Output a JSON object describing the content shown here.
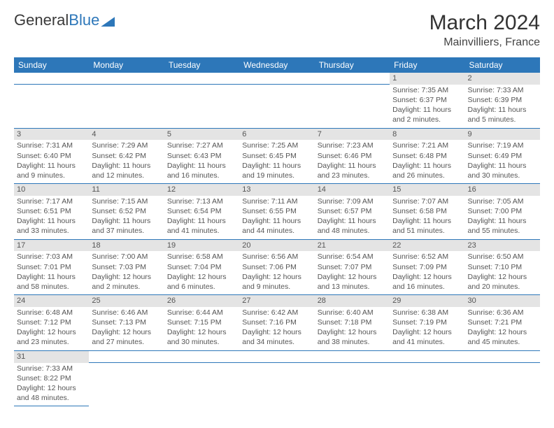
{
  "logo": {
    "word1": "General",
    "word2": "Blue"
  },
  "title": "March 2024",
  "location": "Mainvilliers, France",
  "colors": {
    "header_bg": "#2d77b9",
    "daynum_bg": "#e4e4e4",
    "row_divider": "#2d77b9",
    "text": "#555"
  },
  "weekdays": [
    "Sunday",
    "Monday",
    "Tuesday",
    "Wednesday",
    "Thursday",
    "Friday",
    "Saturday"
  ],
  "weeks": [
    {
      "nums": [
        "",
        "",
        "",
        "",
        "",
        "1",
        "2"
      ],
      "cells": [
        "",
        "",
        "",
        "",
        "",
        "Sunrise: 7:35 AM\nSunset: 6:37 PM\nDaylight: 11 hours and 2 minutes.",
        "Sunrise: 7:33 AM\nSunset: 6:39 PM\nDaylight: 11 hours and 5 minutes."
      ]
    },
    {
      "nums": [
        "3",
        "4",
        "5",
        "6",
        "7",
        "8",
        "9"
      ],
      "cells": [
        "Sunrise: 7:31 AM\nSunset: 6:40 PM\nDaylight: 11 hours and 9 minutes.",
        "Sunrise: 7:29 AM\nSunset: 6:42 PM\nDaylight: 11 hours and 12 minutes.",
        "Sunrise: 7:27 AM\nSunset: 6:43 PM\nDaylight: 11 hours and 16 minutes.",
        "Sunrise: 7:25 AM\nSunset: 6:45 PM\nDaylight: 11 hours and 19 minutes.",
        "Sunrise: 7:23 AM\nSunset: 6:46 PM\nDaylight: 11 hours and 23 minutes.",
        "Sunrise: 7:21 AM\nSunset: 6:48 PM\nDaylight: 11 hours and 26 minutes.",
        "Sunrise: 7:19 AM\nSunset: 6:49 PM\nDaylight: 11 hours and 30 minutes."
      ]
    },
    {
      "nums": [
        "10",
        "11",
        "12",
        "13",
        "14",
        "15",
        "16"
      ],
      "cells": [
        "Sunrise: 7:17 AM\nSunset: 6:51 PM\nDaylight: 11 hours and 33 minutes.",
        "Sunrise: 7:15 AM\nSunset: 6:52 PM\nDaylight: 11 hours and 37 minutes.",
        "Sunrise: 7:13 AM\nSunset: 6:54 PM\nDaylight: 11 hours and 41 minutes.",
        "Sunrise: 7:11 AM\nSunset: 6:55 PM\nDaylight: 11 hours and 44 minutes.",
        "Sunrise: 7:09 AM\nSunset: 6:57 PM\nDaylight: 11 hours and 48 minutes.",
        "Sunrise: 7:07 AM\nSunset: 6:58 PM\nDaylight: 11 hours and 51 minutes.",
        "Sunrise: 7:05 AM\nSunset: 7:00 PM\nDaylight: 11 hours and 55 minutes."
      ]
    },
    {
      "nums": [
        "17",
        "18",
        "19",
        "20",
        "21",
        "22",
        "23"
      ],
      "cells": [
        "Sunrise: 7:03 AM\nSunset: 7:01 PM\nDaylight: 11 hours and 58 minutes.",
        "Sunrise: 7:00 AM\nSunset: 7:03 PM\nDaylight: 12 hours and 2 minutes.",
        "Sunrise: 6:58 AM\nSunset: 7:04 PM\nDaylight: 12 hours and 6 minutes.",
        "Sunrise: 6:56 AM\nSunset: 7:06 PM\nDaylight: 12 hours and 9 minutes.",
        "Sunrise: 6:54 AM\nSunset: 7:07 PM\nDaylight: 12 hours and 13 minutes.",
        "Sunrise: 6:52 AM\nSunset: 7:09 PM\nDaylight: 12 hours and 16 minutes.",
        "Sunrise: 6:50 AM\nSunset: 7:10 PM\nDaylight: 12 hours and 20 minutes."
      ]
    },
    {
      "nums": [
        "24",
        "25",
        "26",
        "27",
        "28",
        "29",
        "30"
      ],
      "cells": [
        "Sunrise: 6:48 AM\nSunset: 7:12 PM\nDaylight: 12 hours and 23 minutes.",
        "Sunrise: 6:46 AM\nSunset: 7:13 PM\nDaylight: 12 hours and 27 minutes.",
        "Sunrise: 6:44 AM\nSunset: 7:15 PM\nDaylight: 12 hours and 30 minutes.",
        "Sunrise: 6:42 AM\nSunset: 7:16 PM\nDaylight: 12 hours and 34 minutes.",
        "Sunrise: 6:40 AM\nSunset: 7:18 PM\nDaylight: 12 hours and 38 minutes.",
        "Sunrise: 6:38 AM\nSunset: 7:19 PM\nDaylight: 12 hours and 41 minutes.",
        "Sunrise: 6:36 AM\nSunset: 7:21 PM\nDaylight: 12 hours and 45 minutes."
      ]
    },
    {
      "nums": [
        "31",
        "",
        "",
        "",
        "",
        "",
        ""
      ],
      "cells": [
        "Sunrise: 7:33 AM\nSunset: 8:22 PM\nDaylight: 12 hours and 48 minutes.",
        "",
        "",
        "",
        "",
        "",
        ""
      ]
    }
  ]
}
